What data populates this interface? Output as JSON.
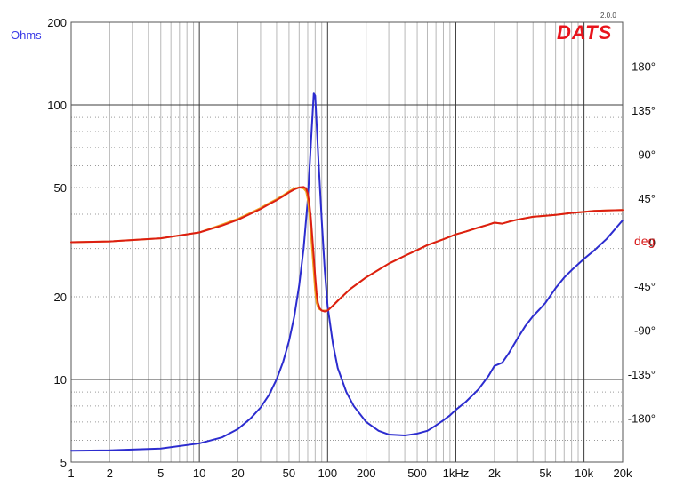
{
  "branding": {
    "logo": "DATS",
    "version": "2.0.0"
  },
  "chart_data": {
    "type": "line",
    "title": "",
    "xlabel": "",
    "xscale": "log",
    "xlim": [
      1,
      20000
    ],
    "x_ticks": [
      {
        "value": 1,
        "label": "1"
      },
      {
        "value": 2,
        "label": "2"
      },
      {
        "value": 5,
        "label": "5"
      },
      {
        "value": 10,
        "label": "10"
      },
      {
        "value": 20,
        "label": "20"
      },
      {
        "value": 50,
        "label": "50"
      },
      {
        "value": 100,
        "label": "100"
      },
      {
        "value": 200,
        "label": "200"
      },
      {
        "value": 500,
        "label": "500"
      },
      {
        "value": 1000,
        "label": "1kHz"
      },
      {
        "value": 2000,
        "label": "2k"
      },
      {
        "value": 5000,
        "label": "5k"
      },
      {
        "value": 10000,
        "label": "10k"
      },
      {
        "value": 20000,
        "label": "20k"
      }
    ],
    "y_left": {
      "label": "Ohms",
      "scale": "log",
      "range": [
        5,
        200
      ],
      "ticks": [
        {
          "value": 200,
          "label": "200"
        },
        {
          "value": 100,
          "label": "100"
        },
        {
          "value": 50,
          "label": "50"
        },
        {
          "value": 20,
          "label": "20"
        },
        {
          "value": 10,
          "label": "10"
        },
        {
          "value": 5,
          "label": "5"
        }
      ]
    },
    "y_right": {
      "label": "deg",
      "range": [
        -225,
        225
      ],
      "ticks": [
        {
          "value": 180,
          "label": "180°"
        },
        {
          "value": 135,
          "label": "135°"
        },
        {
          "value": 90,
          "label": "90°"
        },
        {
          "value": 45,
          "label": "45°"
        },
        {
          "value": 0,
          "label": "0"
        },
        {
          "value": -45,
          "label": "-45°"
        },
        {
          "value": -90,
          "label": "-90°"
        },
        {
          "value": -135,
          "label": "-135°"
        },
        {
          "value": -180,
          "label": "-180°"
        }
      ]
    },
    "grid": true,
    "colors": {
      "impedance": "#2c2ccf",
      "phase": "#dc1e12",
      "phase_alt": "#f0a020",
      "logo": "#e8141c"
    },
    "series": [
      {
        "axis": "left",
        "color": "#2c2ccf",
        "points": [
          [
            1,
            5.5
          ],
          [
            2,
            5.52
          ],
          [
            5,
            5.6
          ],
          [
            10,
            5.85
          ],
          [
            15,
            6.15
          ],
          [
            20,
            6.6
          ],
          [
            25,
            7.2
          ],
          [
            30,
            7.9
          ],
          [
            35,
            8.8
          ],
          [
            40,
            10.0
          ],
          [
            45,
            11.6
          ],
          [
            50,
            13.8
          ],
          [
            55,
            17.0
          ],
          [
            60,
            22.0
          ],
          [
            65,
            30.0
          ],
          [
            70,
            45.0
          ],
          [
            75,
            80.0
          ],
          [
            78,
            110.0
          ],
          [
            80,
            108.0
          ],
          [
            85,
            62.0
          ],
          [
            90,
            38.0
          ],
          [
            95,
            25.0
          ],
          [
            100,
            18.5
          ],
          [
            110,
            13.5
          ],
          [
            120,
            11.0
          ],
          [
            140,
            9.0
          ],
          [
            160,
            8.0
          ],
          [
            200,
            7.0
          ],
          [
            250,
            6.5
          ],
          [
            300,
            6.3
          ],
          [
            400,
            6.25
          ],
          [
            500,
            6.35
          ],
          [
            600,
            6.5
          ],
          [
            700,
            6.8
          ],
          [
            800,
            7.1
          ],
          [
            900,
            7.4
          ],
          [
            1000,
            7.75
          ],
          [
            1200,
            8.3
          ],
          [
            1500,
            9.2
          ],
          [
            1800,
            10.3
          ],
          [
            2000,
            11.2
          ],
          [
            2300,
            11.5
          ],
          [
            2600,
            12.5
          ],
          [
            3000,
            14.0
          ],
          [
            3500,
            15.7
          ],
          [
            4000,
            17.0
          ],
          [
            4500,
            18.0
          ],
          [
            5000,
            19.0
          ],
          [
            6000,
            21.5
          ],
          [
            7000,
            23.5
          ],
          [
            8000,
            25.0
          ],
          [
            10000,
            27.5
          ],
          [
            12000,
            29.5
          ],
          [
            15000,
            32.5
          ],
          [
            20000,
            38.0
          ]
        ]
      },
      {
        "axis": "right",
        "color": "#f0a020",
        "points": [
          [
            1,
            0
          ],
          [
            2,
            0.8
          ],
          [
            5,
            4
          ],
          [
            10,
            10
          ],
          [
            15,
            18
          ],
          [
            20,
            24
          ],
          [
            25,
            30
          ],
          [
            30,
            35
          ],
          [
            35,
            40
          ],
          [
            40,
            44
          ],
          [
            45,
            48
          ],
          [
            50,
            52
          ],
          [
            55,
            55
          ],
          [
            60,
            56
          ],
          [
            65,
            55
          ],
          [
            68,
            52
          ],
          [
            70,
            44
          ],
          [
            72,
            30
          ],
          [
            74,
            10
          ],
          [
            76,
            -10
          ],
          [
            78,
            -30
          ],
          [
            80,
            -50
          ],
          [
            82,
            -62
          ],
          [
            85,
            -68
          ],
          [
            90,
            -70
          ],
          [
            95,
            -70
          ],
          [
            100,
            -70
          ],
          [
            110,
            -65
          ],
          [
            120,
            -60
          ],
          [
            150,
            -48
          ],
          [
            200,
            -36
          ],
          [
            300,
            -22
          ],
          [
            400,
            -14
          ],
          [
            500,
            -8
          ],
          [
            600,
            -3
          ],
          [
            800,
            3
          ],
          [
            1000,
            8
          ],
          [
            1200,
            11
          ],
          [
            1500,
            15
          ],
          [
            1800,
            18
          ],
          [
            2000,
            20
          ],
          [
            2300,
            19
          ],
          [
            2600,
            21
          ],
          [
            3000,
            23
          ],
          [
            4000,
            26
          ],
          [
            5000,
            27
          ],
          [
            6000,
            28
          ],
          [
            7000,
            29
          ],
          [
            8000,
            30
          ],
          [
            10000,
            31
          ],
          [
            12000,
            32
          ],
          [
            15000,
            32.5
          ],
          [
            20000,
            33
          ]
        ]
      },
      {
        "axis": "right",
        "color": "#dc1e12",
        "points": [
          [
            1,
            0
          ],
          [
            2,
            0.8
          ],
          [
            5,
            4
          ],
          [
            10,
            10
          ],
          [
            15,
            17
          ],
          [
            20,
            23
          ],
          [
            25,
            29
          ],
          [
            30,
            34
          ],
          [
            35,
            39
          ],
          [
            40,
            43
          ],
          [
            45,
            47
          ],
          [
            50,
            51
          ],
          [
            55,
            54
          ],
          [
            60,
            56
          ],
          [
            65,
            56.5
          ],
          [
            68,
            55
          ],
          [
            70,
            50
          ],
          [
            72,
            40
          ],
          [
            74,
            25
          ],
          [
            76,
            5
          ],
          [
            78,
            -15
          ],
          [
            80,
            -35
          ],
          [
            82,
            -52
          ],
          [
            84,
            -62
          ],
          [
            87,
            -68
          ],
          [
            90,
            -70
          ],
          [
            95,
            -71
          ],
          [
            100,
            -70
          ],
          [
            110,
            -65
          ],
          [
            120,
            -60
          ],
          [
            150,
            -48
          ],
          [
            200,
            -36
          ],
          [
            300,
            -22
          ],
          [
            400,
            -14
          ],
          [
            500,
            -8
          ],
          [
            600,
            -3
          ],
          [
            800,
            3
          ],
          [
            1000,
            8
          ],
          [
            1200,
            11
          ],
          [
            1500,
            15
          ],
          [
            1800,
            18
          ],
          [
            2000,
            20
          ],
          [
            2300,
            19
          ],
          [
            2600,
            21
          ],
          [
            3000,
            23
          ],
          [
            4000,
            26
          ],
          [
            5000,
            27
          ],
          [
            6000,
            28
          ],
          [
            7000,
            29
          ],
          [
            8000,
            30
          ],
          [
            10000,
            31
          ],
          [
            12000,
            32
          ],
          [
            15000,
            32.5
          ],
          [
            20000,
            33
          ]
        ]
      }
    ]
  }
}
